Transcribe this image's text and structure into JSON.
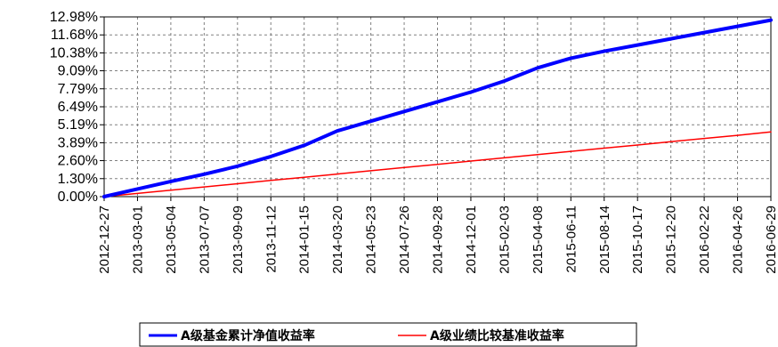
{
  "chart_data": {
    "type": "line",
    "title": "",
    "xlabel": "",
    "ylabel": "",
    "y_ticks": [
      "0.00%",
      "1.30%",
      "2.60%",
      "3.89%",
      "5.19%",
      "6.49%",
      "7.79%",
      "9.09%",
      "10.38%",
      "11.68%",
      "12.98%"
    ],
    "ylim": [
      0,
      12.98
    ],
    "x_ticks": [
      "2012-12-27",
      "2013-03-01",
      "2013-05-04",
      "2013-07-07",
      "2013-09-09",
      "2013-11-12",
      "2014-01-15",
      "2014-03-20",
      "2014-05-23",
      "2014-07-26",
      "2014-09-28",
      "2014-12-01",
      "2015-02-03",
      "2015-04-08",
      "2015-06-11",
      "2015-08-14",
      "2015-10-17",
      "2015-12-20",
      "2016-02-22",
      "2016-04-26",
      "2016-06-29"
    ],
    "grid": true,
    "legend_position": "bottom",
    "series": [
      {
        "name": "A级基金累计净值收益率",
        "color": "#0000ff",
        "values": [
          0.0,
          0.55,
          1.1,
          1.62,
          2.2,
          2.9,
          3.7,
          4.75,
          5.45,
          6.15,
          6.85,
          7.55,
          8.35,
          9.3,
          10.0,
          10.5,
          10.95,
          11.4,
          11.85,
          12.3,
          12.75
        ]
      },
      {
        "name": "A级业绩比较基准收益率",
        "color": "#ff0000",
        "values": [
          0.0,
          0.23,
          0.47,
          0.7,
          0.93,
          1.17,
          1.4,
          1.63,
          1.87,
          2.1,
          2.33,
          2.57,
          2.8,
          3.03,
          3.27,
          3.5,
          3.73,
          3.97,
          4.2,
          4.43,
          4.67
        ]
      }
    ]
  }
}
